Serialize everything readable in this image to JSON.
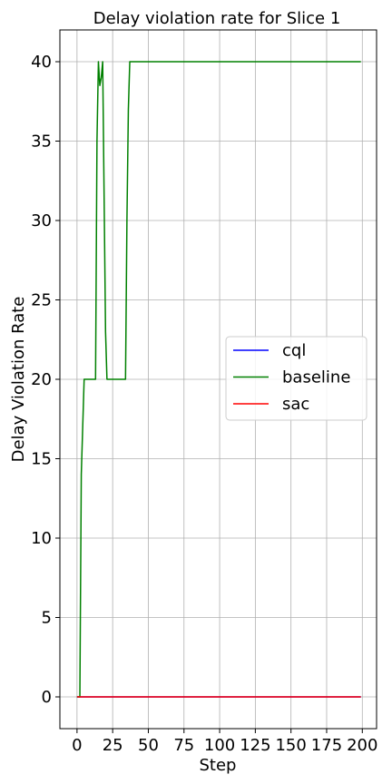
{
  "chart_data": {
    "type": "line",
    "title": "Delay violation rate for Slice 1",
    "xlabel": "Step",
    "ylabel": "Delay Violation Rate",
    "xlim": [
      -12,
      210
    ],
    "ylim": [
      -2,
      42
    ],
    "xticks": [
      0,
      25,
      50,
      75,
      100,
      125,
      150,
      175,
      200
    ],
    "yticks": [
      0,
      5,
      10,
      15,
      20,
      25,
      30,
      35,
      40
    ],
    "grid": true,
    "legend_position": "center-right",
    "series": [
      {
        "name": "cql",
        "color": "#0000ff",
        "x": [
          0,
          199
        ],
        "y": [
          0,
          0
        ]
      },
      {
        "name": "baseline",
        "color": "#008000",
        "x": [
          0,
          2,
          3,
          5,
          13,
          14,
          15,
          16,
          17,
          18,
          20,
          21,
          34,
          35,
          36,
          37,
          38,
          199
        ],
        "y": [
          0,
          0,
          14,
          20,
          20,
          35,
          40,
          38.5,
          39,
          40,
          23,
          20,
          20,
          30,
          37,
          40,
          40,
          40
        ]
      },
      {
        "name": "sac",
        "color": "#ff0000",
        "x": [
          0,
          199
        ],
        "y": [
          0,
          0
        ]
      }
    ]
  }
}
